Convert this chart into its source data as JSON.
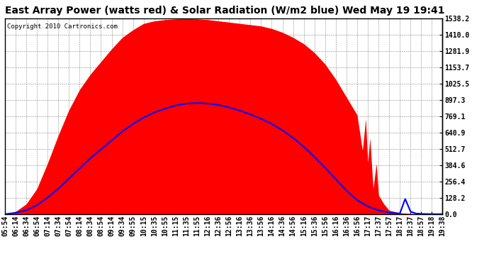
{
  "title": "East Array Power (watts red) & Solar Radiation (W/m2 blue) Wed May 19 19:41",
  "copyright": "Copyright 2010 Cartronics.com",
  "background_color": "#ffffff",
  "plot_bg_color": "#ffffff",
  "grid_color": "#888888",
  "red_fill_color": "#ff0000",
  "blue_line_color": "#0000ff",
  "y_max": 1538.2,
  "y_min": 0.0,
  "y_ticks": [
    0.0,
    128.2,
    256.4,
    384.6,
    512.7,
    640.9,
    769.1,
    897.3,
    1025.5,
    1153.7,
    1281.9,
    1410.0,
    1538.2
  ],
  "x_labels": [
    "05:54",
    "06:14",
    "06:34",
    "06:54",
    "07:14",
    "07:34",
    "07:54",
    "08:14",
    "08:34",
    "08:54",
    "09:14",
    "09:34",
    "09:55",
    "10:15",
    "10:35",
    "10:55",
    "11:15",
    "11:35",
    "11:55",
    "12:16",
    "12:36",
    "12:56",
    "13:16",
    "13:36",
    "13:56",
    "14:16",
    "14:36",
    "14:56",
    "15:16",
    "15:36",
    "15:56",
    "16:16",
    "16:36",
    "16:56",
    "17:17",
    "17:37",
    "17:57",
    "18:17",
    "18:37",
    "18:57",
    "19:18",
    "19:38"
  ],
  "title_fontsize": 10,
  "tick_fontsize": 7,
  "copyright_fontsize": 6.5,
  "power_points": [
    [
      0,
      0
    ],
    [
      1,
      20
    ],
    [
      2,
      80
    ],
    [
      3,
      200
    ],
    [
      4,
      400
    ],
    [
      5,
      620
    ],
    [
      6,
      820
    ],
    [
      7,
      980
    ],
    [
      8,
      1100
    ],
    [
      9,
      1200
    ],
    [
      10,
      1300
    ],
    [
      11,
      1390
    ],
    [
      12,
      1450
    ],
    [
      13,
      1500
    ],
    [
      14,
      1520
    ],
    [
      15,
      1530
    ],
    [
      16,
      1535
    ],
    [
      17,
      1538
    ],
    [
      18,
      1535
    ],
    [
      19,
      1530
    ],
    [
      20,
      1520
    ],
    [
      21,
      1510
    ],
    [
      22,
      1500
    ],
    [
      23,
      1490
    ],
    [
      24,
      1480
    ],
    [
      25,
      1460
    ],
    [
      26,
      1430
    ],
    [
      27,
      1390
    ],
    [
      28,
      1340
    ],
    [
      29,
      1270
    ],
    [
      30,
      1180
    ],
    [
      31,
      1060
    ],
    [
      32,
      920
    ],
    [
      33,
      780
    ],
    [
      33.5,
      500
    ],
    [
      33.8,
      750
    ],
    [
      34,
      400
    ],
    [
      34.2,
      600
    ],
    [
      34.5,
      200
    ],
    [
      34.8,
      400
    ],
    [
      35,
      150
    ],
    [
      35.5,
      80
    ],
    [
      36,
      30
    ],
    [
      37,
      10
    ],
    [
      38,
      5
    ],
    [
      39,
      2
    ],
    [
      40,
      0
    ],
    [
      41,
      0
    ]
  ],
  "solar_points": [
    [
      0,
      0
    ],
    [
      1,
      10
    ],
    [
      2,
      30
    ],
    [
      3,
      70
    ],
    [
      4,
      130
    ],
    [
      5,
      200
    ],
    [
      6,
      280
    ],
    [
      7,
      360
    ],
    [
      8,
      440
    ],
    [
      9,
      510
    ],
    [
      10,
      580
    ],
    [
      11,
      650
    ],
    [
      12,
      710
    ],
    [
      13,
      760
    ],
    [
      14,
      800
    ],
    [
      15,
      830
    ],
    [
      16,
      855
    ],
    [
      17,
      870
    ],
    [
      18,
      875
    ],
    [
      19,
      870
    ],
    [
      20,
      860
    ],
    [
      21,
      840
    ],
    [
      22,
      815
    ],
    [
      23,
      785
    ],
    [
      24,
      750
    ],
    [
      25,
      710
    ],
    [
      26,
      660
    ],
    [
      27,
      600
    ],
    [
      28,
      530
    ],
    [
      29,
      450
    ],
    [
      30,
      365
    ],
    [
      31,
      275
    ],
    [
      32,
      185
    ],
    [
      33,
      110
    ],
    [
      34,
      60
    ],
    [
      35,
      30
    ],
    [
      36,
      12
    ],
    [
      37,
      5
    ],
    [
      37.5,
      120
    ],
    [
      37.8,
      60
    ],
    [
      38,
      20
    ],
    [
      38.5,
      5
    ],
    [
      39,
      2
    ],
    [
      40,
      0
    ],
    [
      41,
      0
    ]
  ]
}
